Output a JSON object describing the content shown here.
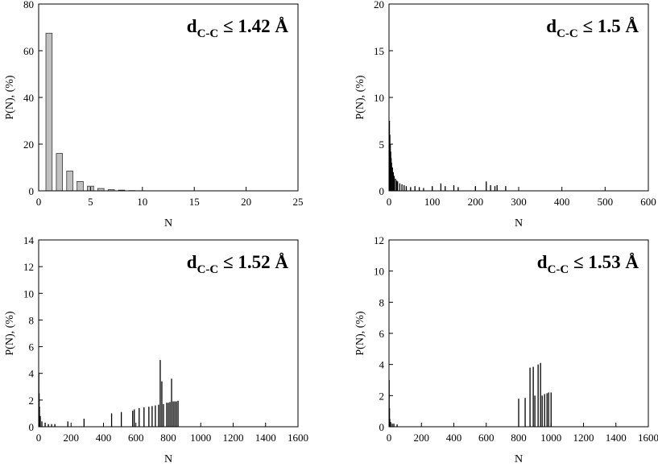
{
  "chart_data": [
    {
      "type": "bar",
      "annotation": {
        "base": "d",
        "sub": "C-C",
        "rest": " ≤ 1.42 Å"
      },
      "xlabel": "N",
      "ylabel": "P(N), (%)",
      "color": "#c0c0c0",
      "x": [
        1,
        2,
        3,
        4,
        5,
        6,
        7,
        8,
        9,
        10
      ],
      "values": [
        67.5,
        16,
        8.5,
        4,
        2,
        1,
        0.5,
        0.3,
        0.1,
        0.05
      ],
      "xlim": [
        0,
        25
      ],
      "xticks": [
        0,
        5,
        10,
        15,
        20,
        25
      ],
      "ylim": [
        0,
        80
      ],
      "yticks": [
        0,
        20,
        40,
        60,
        80
      ]
    },
    {
      "type": "bar",
      "annotation": {
        "base": "d",
        "sub": "C-C",
        "rest": " ≤ 1.5 Å"
      },
      "xlabel": "N",
      "ylabel": "P(N), (%)",
      "color": "#000000",
      "x": [
        1,
        2,
        3,
        4,
        5,
        6,
        8,
        10,
        12,
        15,
        18,
        20,
        25,
        30,
        35,
        40,
        50,
        60,
        70,
        80,
        100,
        120,
        130,
        150,
        160,
        200,
        225,
        235,
        245,
        250,
        270
      ],
      "values": [
        7.5,
        6,
        5,
        4.2,
        3.5,
        3,
        2.5,
        2,
        1.6,
        1.3,
        1.1,
        1,
        0.8,
        0.7,
        0.6,
        0.5,
        0.4,
        0.5,
        0.4,
        0.3,
        0.5,
        0.8,
        0.5,
        0.6,
        0.4,
        0.5,
        1.0,
        0.6,
        0.5,
        0.6,
        0.5
      ],
      "xlim": [
        0,
        600
      ],
      "xticks": [
        0,
        100,
        200,
        300,
        400,
        500,
        600
      ],
      "ylim": [
        0,
        20
      ],
      "yticks": [
        0,
        5,
        10,
        15,
        20
      ]
    },
    {
      "type": "bar",
      "annotation": {
        "base": "d",
        "sub": "C-C",
        "rest": " ≤ 1.52 Å"
      },
      "xlabel": "N",
      "ylabel": "P(N), (%)",
      "color": "#000000",
      "x": [
        1,
        3,
        5,
        10,
        20,
        40,
        60,
        80,
        100,
        180,
        280,
        450,
        510,
        580,
        590,
        620,
        650,
        680,
        700,
        720,
        740,
        750,
        760,
        770,
        790,
        800,
        810,
        820,
        830,
        840,
        850,
        860
      ],
      "values": [
        4,
        2.5,
        1.5,
        0.8,
        0.4,
        0.3,
        0.2,
        0.2,
        0.2,
        0.4,
        0.6,
        1.0,
        1.1,
        1.2,
        1.3,
        1.4,
        1.45,
        1.5,
        1.55,
        1.6,
        1.65,
        5.0,
        3.4,
        1.7,
        1.8,
        1.8,
        1.85,
        3.6,
        1.9,
        1.9,
        1.9,
        1.95
      ],
      "xlim": [
        0,
        1600
      ],
      "xticks": [
        0,
        200,
        400,
        600,
        800,
        1000,
        1200,
        1400,
        1600
      ],
      "ylim": [
        0,
        14
      ],
      "yticks": [
        0,
        2,
        4,
        6,
        8,
        10,
        12,
        14
      ]
    },
    {
      "type": "bar",
      "annotation": {
        "base": "d",
        "sub": "C-C",
        "rest": " ≤ 1.53 Å"
      },
      "xlabel": "N",
      "ylabel": "P(N), (%)",
      "color": "#000000",
      "x": [
        1,
        3,
        5,
        10,
        20,
        30,
        50,
        800,
        840,
        870,
        890,
        900,
        920,
        935,
        945,
        960,
        975,
        985,
        1000
      ],
      "values": [
        3,
        1.2,
        0.5,
        0.3,
        0.2,
        0.2,
        0.15,
        1.8,
        1.85,
        3.8,
        3.85,
        2.0,
        4.0,
        4.1,
        2.0,
        2.1,
        2.15,
        2.2,
        2.2
      ],
      "xlim": [
        0,
        1600
      ],
      "xticks": [
        0,
        200,
        400,
        600,
        800,
        1000,
        1200,
        1400,
        1600
      ],
      "ylim": [
        0,
        12
      ],
      "yticks": [
        0,
        2,
        4,
        6,
        8,
        10,
        12
      ]
    }
  ]
}
